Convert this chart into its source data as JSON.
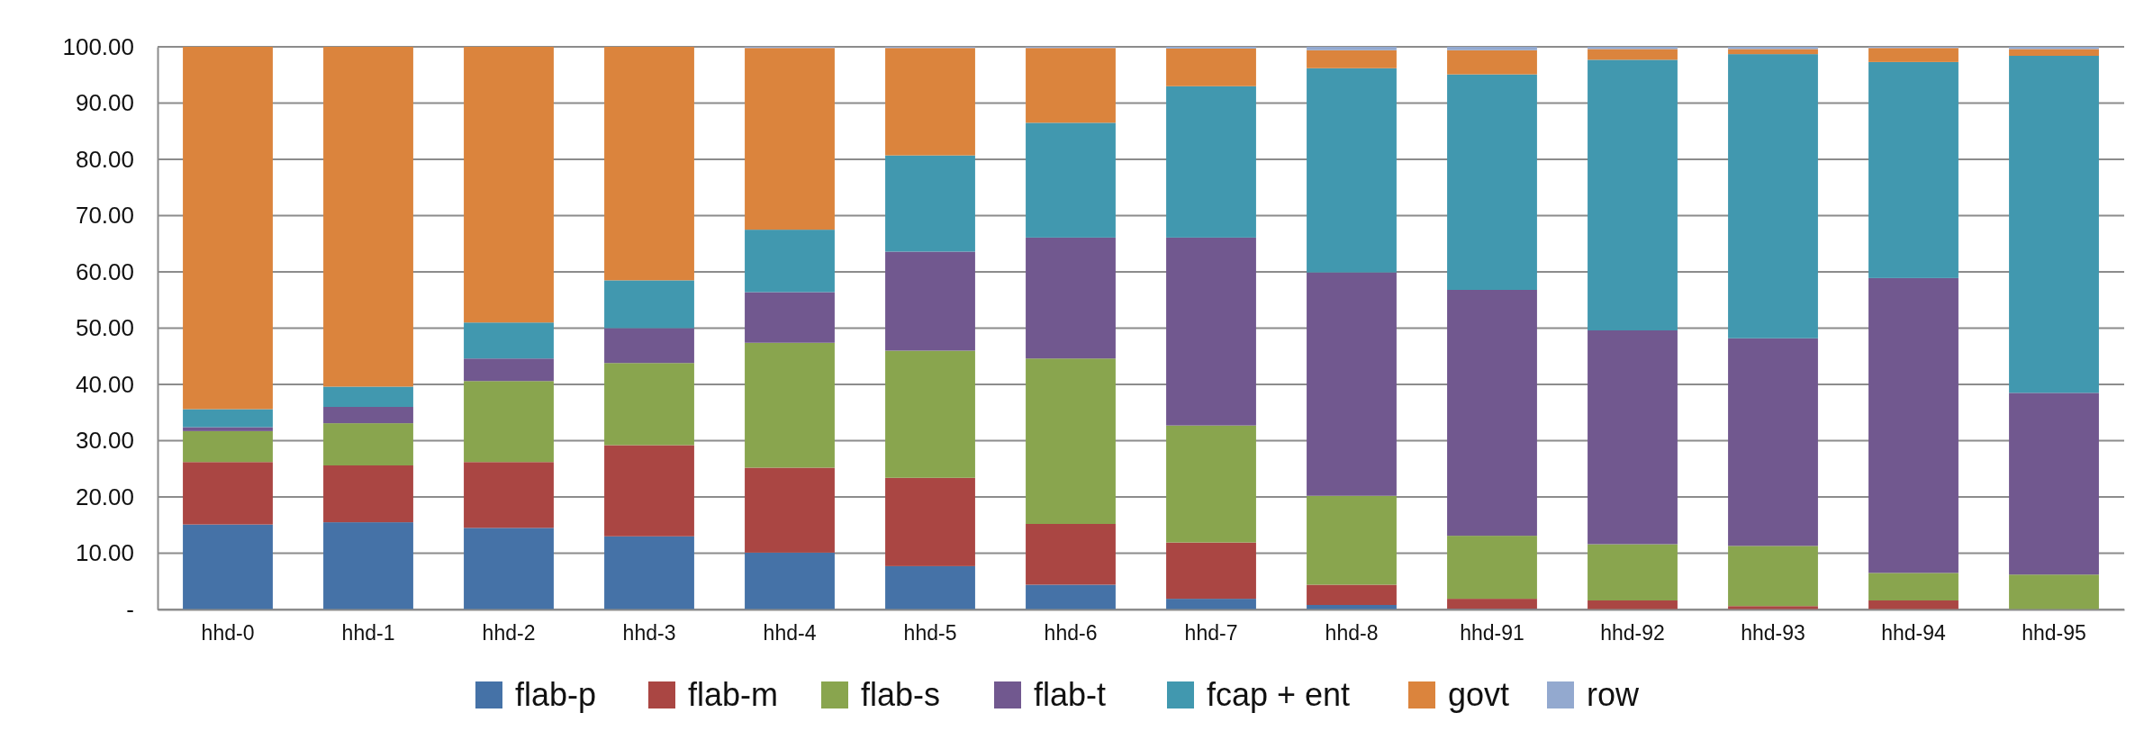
{
  "chart_data": {
    "type": "bar",
    "stacked": true,
    "categories": [
      "hhd-0",
      "hhd-1",
      "hhd-2",
      "hhd-3",
      "hhd-4",
      "hhd-5",
      "hhd-6",
      "hhd-7",
      "hhd-8",
      "hhd-91",
      "hhd-92",
      "hhd-93",
      "hhd-94",
      "hhd-95"
    ],
    "series": [
      {
        "name": "flab-p",
        "color": "#4572a7",
        "values": [
          15.1,
          15.5,
          14.5,
          13.0,
          10.1,
          7.7,
          4.4,
          1.9,
          0.8,
          0.1,
          0,
          0,
          0,
          0
        ]
      },
      {
        "name": "flab-m",
        "color": "#aa4643",
        "values": [
          11.1,
          10.1,
          11.7,
          16.2,
          15.1,
          15.7,
          10.8,
          10.0,
          3.6,
          1.8,
          1.6,
          0.6,
          1.6,
          0
        ]
      },
      {
        "name": "flab-s",
        "color": "#89a54e",
        "values": [
          5.5,
          7.5,
          14.4,
          14.6,
          22.2,
          22.6,
          29.4,
          20.8,
          15.8,
          11.2,
          10.0,
          10.7,
          4.9,
          6.2
        ]
      },
      {
        "name": "flab-t",
        "color": "#71588f",
        "values": [
          0.7,
          2.9,
          4.0,
          6.2,
          9.0,
          17.6,
          21.5,
          33.4,
          39.7,
          43.7,
          38.0,
          36.9,
          52.4,
          32.3
        ]
      },
      {
        "name": "fcap + ent",
        "color": "#4198af",
        "values": [
          3.2,
          3.6,
          6.4,
          8.5,
          11.1,
          17.1,
          20.4,
          26.9,
          36.3,
          38.3,
          48.1,
          50.5,
          38.4,
          59.9
        ]
      },
      {
        "name": "govt",
        "color": "#db843d",
        "values": [
          64.4,
          60.4,
          49.0,
          41.5,
          32.3,
          19.1,
          13.3,
          6.7,
          3.2,
          4.3,
          1.9,
          0.9,
          2.5,
          1.2
        ]
      },
      {
        "name": "row",
        "color": "#93a9cf",
        "values": [
          0,
          0,
          0,
          0,
          0.2,
          0.2,
          0.2,
          0.3,
          0.6,
          0.6,
          0.4,
          0.4,
          0.2,
          0.4
        ]
      }
    ],
    "ylim": [
      0,
      100
    ],
    "yticks": [
      {
        "value": 0,
        "label": "-"
      },
      {
        "value": 10,
        "label": "10.00"
      },
      {
        "value": 20,
        "label": "20.00"
      },
      {
        "value": 30,
        "label": "30.00"
      },
      {
        "value": 40,
        "label": "40.00"
      },
      {
        "value": 50,
        "label": "50.00"
      },
      {
        "value": 60,
        "label": "60.00"
      },
      {
        "value": 70,
        "label": "70.00"
      },
      {
        "value": 80,
        "label": "80.00"
      },
      {
        "value": 90,
        "label": "90.00"
      },
      {
        "value": 100,
        "label": "100.00"
      }
    ],
    "grid": "y",
    "legend": "bottom"
  }
}
